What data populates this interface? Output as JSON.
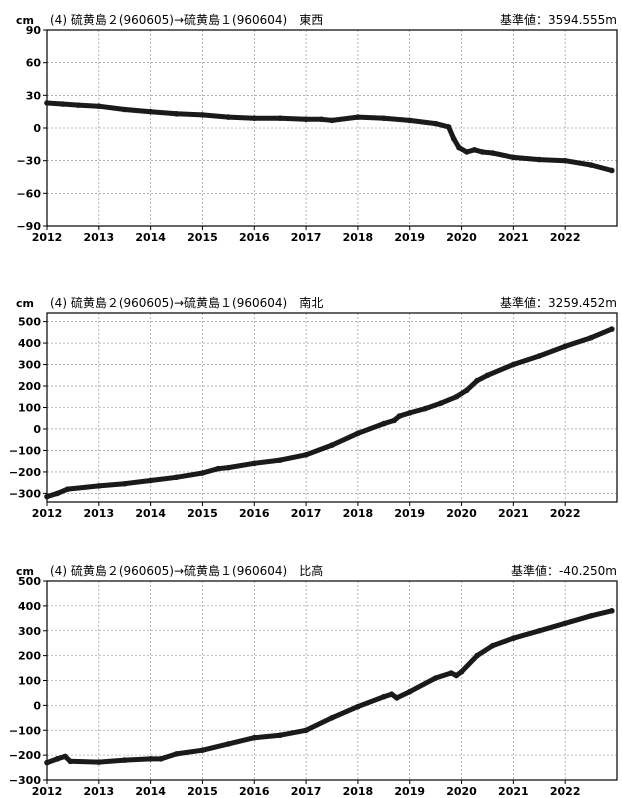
{
  "charts": [
    {
      "unit": "cm",
      "title": "(4) 硫黄島２(960605)→硫黄島１(960604)　東西",
      "baseline": "基準値：3594.555m"
    },
    {
      "unit": "cm",
      "title": "(4) 硫黄島２(960605)→硫黄島１(960604)　南北",
      "baseline": "基準値：3259.452m"
    },
    {
      "unit": "cm",
      "title": "(4) 硫黄島２(960605)→硫黄島１(960604)　比高",
      "baseline": "基準値：-40.250m"
    }
  ],
  "chart_data": [
    {
      "type": "line",
      "xlim": [
        2012,
        2023
      ],
      "ylim": [
        -90,
        90
      ],
      "x_ticks": [
        "2012",
        "2013",
        "2014",
        "2015",
        "2016",
        "2017",
        "2018",
        "2019",
        "2020",
        "2021",
        "2022"
      ],
      "y_ticks": [
        90,
        60,
        30,
        0,
        -30,
        -60,
        -90
      ],
      "grid": true,
      "series": [
        {
          "x": [
            2012.0,
            2012.3,
            2012.6,
            2013.0,
            2013.5,
            2014.0,
            2014.5,
            2015.0,
            2015.5,
            2016.0,
            2016.5,
            2017.0,
            2017.3,
            2017.5,
            2018.0,
            2018.5,
            2019.0,
            2019.5,
            2019.75,
            2019.85,
            2019.95,
            2020.1,
            2020.25,
            2020.4,
            2020.6,
            2021.0,
            2021.5,
            2022.0,
            2022.5,
            2022.9
          ],
          "y": [
            23,
            22,
            21,
            20,
            17,
            15,
            13,
            12,
            10,
            9,
            9,
            8,
            8,
            7,
            10,
            9,
            7,
            4,
            1,
            -10,
            -18,
            -22,
            -20,
            -22,
            -23,
            -27,
            -29,
            -30,
            -34,
            -39
          ]
        }
      ]
    },
    {
      "type": "line",
      "xlim": [
        2012,
        2023
      ],
      "ylim": [
        -340,
        540
      ],
      "x_ticks": [
        "2012",
        "2013",
        "2014",
        "2015",
        "2016",
        "2017",
        "2018",
        "2019",
        "2020",
        "2021",
        "2022"
      ],
      "y_ticks": [
        500,
        400,
        300,
        200,
        100,
        0,
        -100,
        -200,
        -300
      ],
      "grid": true,
      "series": [
        {
          "x": [
            2012.0,
            2012.2,
            2012.4,
            2013.0,
            2013.5,
            2014.0,
            2014.5,
            2015.0,
            2015.3,
            2015.5,
            2016.0,
            2016.5,
            2017.0,
            2017.5,
            2018.0,
            2018.5,
            2018.7,
            2018.8,
            2019.0,
            2019.3,
            2019.6,
            2019.9,
            2020.1,
            2020.3,
            2020.5,
            2021.0,
            2021.5,
            2022.0,
            2022.5,
            2022.9
          ],
          "y": [
            -315,
            -300,
            -280,
            -265,
            -255,
            -240,
            -225,
            -205,
            -185,
            -180,
            -160,
            -145,
            -120,
            -75,
            -20,
            25,
            40,
            60,
            75,
            95,
            120,
            150,
            180,
            225,
            250,
            300,
            340,
            385,
            425,
            465
          ]
        }
      ]
    },
    {
      "type": "line",
      "xlim": [
        2012,
        2023
      ],
      "ylim": [
        -300,
        500
      ],
      "x_ticks": [
        "2012",
        "2013",
        "2014",
        "2015",
        "2016",
        "2017",
        "2018",
        "2019",
        "2020",
        "2021",
        "2022"
      ],
      "y_ticks": [
        500,
        400,
        300,
        200,
        100,
        0,
        -100,
        -200,
        -300
      ],
      "grid": true,
      "series": [
        {
          "x": [
            2012.0,
            2012.2,
            2012.35,
            2012.45,
            2013.0,
            2013.5,
            2014.0,
            2014.2,
            2014.5,
            2015.0,
            2015.5,
            2016.0,
            2016.5,
            2017.0,
            2017.5,
            2018.0,
            2018.5,
            2018.65,
            2018.75,
            2019.0,
            2019.5,
            2019.8,
            2019.9,
            2020.0,
            2020.3,
            2020.6,
            2021.0,
            2021.5,
            2022.0,
            2022.5,
            2022.9
          ],
          "y": [
            -230,
            -215,
            -205,
            -225,
            -228,
            -220,
            -215,
            -215,
            -195,
            -180,
            -155,
            -130,
            -120,
            -100,
            -50,
            -5,
            35,
            45,
            30,
            55,
            110,
            130,
            120,
            135,
            200,
            240,
            270,
            300,
            330,
            360,
            380
          ]
        }
      ]
    }
  ]
}
